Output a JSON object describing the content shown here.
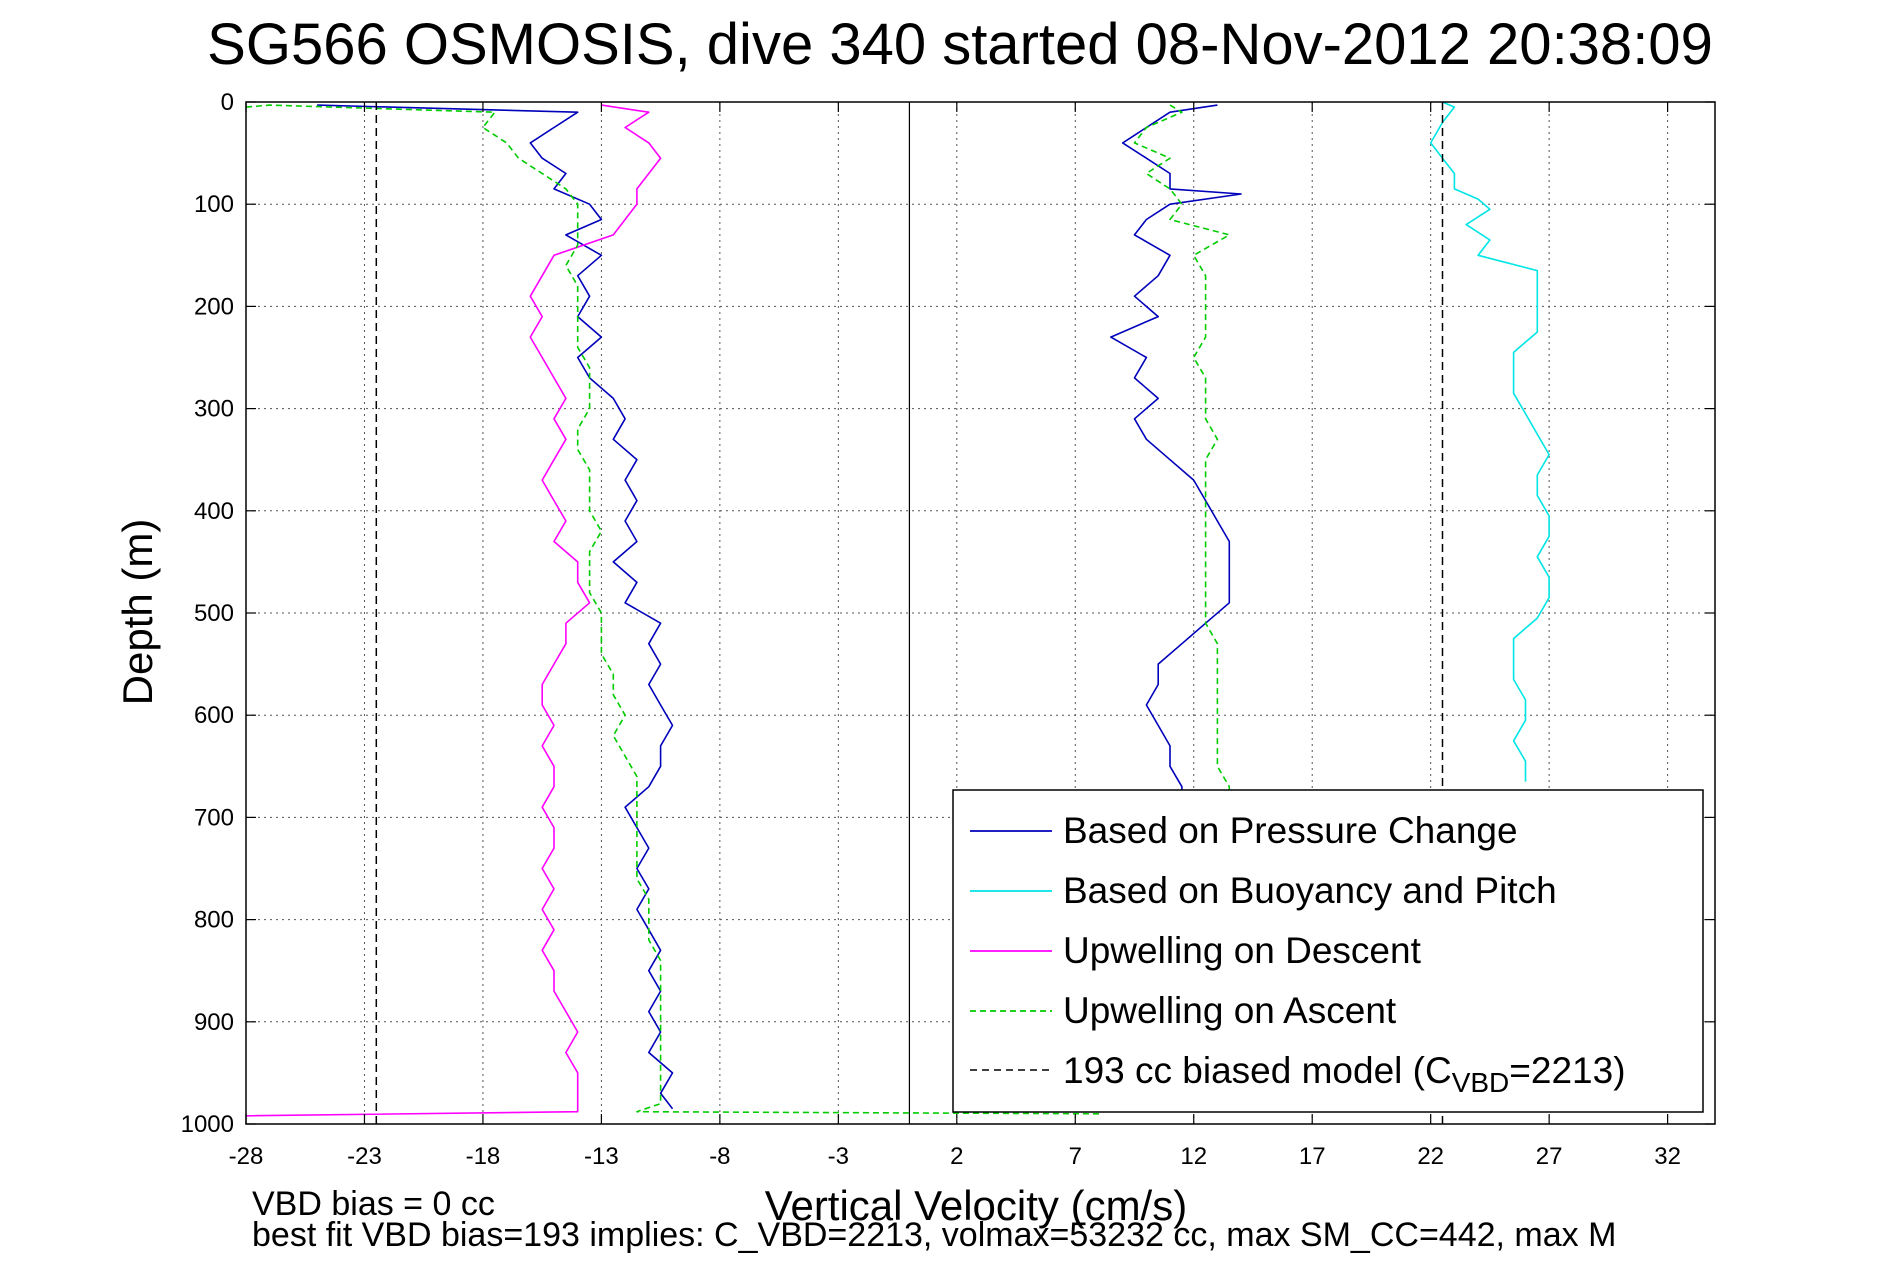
{
  "chart_data": {
    "type": "line",
    "title": "SG566 OSMOSIS, dive 340 started 08-Nov-2012 20:38:09",
    "xlabel": "Vertical Velocity (cm/s)",
    "ylabel": "Depth (m)",
    "xlim": [
      -28,
      34
    ],
    "ylim": [
      1000,
      0
    ],
    "y_reversed": true,
    "xticks": [
      -28,
      -23,
      -18,
      -13,
      -8,
      -3,
      2,
      7,
      12,
      17,
      22,
      27,
      32
    ],
    "yticks": [
      0,
      100,
      200,
      300,
      400,
      500,
      600,
      700,
      800,
      900,
      1000
    ],
    "grid": true,
    "legend_position": "lower-right",
    "footnote_line1": "VBD bias = 0 cc",
    "footnote_line2": "best fit VBD bias=193 implies: C_VBD=2213, volmax=53232 cc, max SM_CC=442, max M",
    "zero_line_x": 0,
    "legend": {
      "items": [
        {
          "label": "Based on Pressure Change",
          "color": "#0000bb",
          "dash": "solid"
        },
        {
          "label": "Based on Buoyancy and Pitch",
          "color": "#00e5e5",
          "dash": "solid"
        },
        {
          "label": "Upwelling on Descent",
          "color": "#ff00ff",
          "dash": "solid"
        },
        {
          "label": "Upwelling on Ascent",
          "color": "#00cc00",
          "dash": "dashed"
        }
      ],
      "model_label_main": "193 cc biased model (C",
      "model_label_sub": "VBD",
      "model_label_tail": "=2213)",
      "model_color": "#000000"
    },
    "series": [
      {
        "name": "Based on Pressure Change",
        "color": "#0000bb",
        "dash": "solid",
        "points": [
          [
            -25,
            3
          ],
          [
            -14,
            10
          ],
          [
            -15,
            25
          ],
          [
            -16,
            40
          ],
          [
            -15.5,
            55
          ],
          [
            -14.5,
            70
          ],
          [
            -15,
            85
          ],
          [
            -13.5,
            100
          ],
          [
            -13,
            115
          ],
          [
            -14.5,
            130
          ],
          [
            -13,
            150
          ],
          [
            -14,
            170
          ],
          [
            -13.5,
            190
          ],
          [
            -14,
            210
          ],
          [
            -13,
            230
          ],
          [
            -14,
            250
          ],
          [
            -13.5,
            270
          ],
          [
            -12.5,
            290
          ],
          [
            -12,
            310
          ],
          [
            -12.5,
            330
          ],
          [
            -11.5,
            350
          ],
          [
            -12,
            370
          ],
          [
            -11.5,
            390
          ],
          [
            -12,
            410
          ],
          [
            -11.5,
            430
          ],
          [
            -12.5,
            450
          ],
          [
            -11.5,
            470
          ],
          [
            -12,
            490
          ],
          [
            -10.5,
            510
          ],
          [
            -11,
            530
          ],
          [
            -10.5,
            550
          ],
          [
            -11,
            570
          ],
          [
            -10.5,
            590
          ],
          [
            -10,
            610
          ],
          [
            -10.5,
            630
          ],
          [
            -10.5,
            650
          ],
          [
            -11,
            670
          ],
          [
            -12,
            690
          ],
          [
            -11.5,
            710
          ],
          [
            -11,
            730
          ],
          [
            -11.5,
            750
          ],
          [
            -11,
            770
          ],
          [
            -11.5,
            790
          ],
          [
            -11,
            810
          ],
          [
            -10.5,
            830
          ],
          [
            -11,
            850
          ],
          [
            -10.5,
            870
          ],
          [
            -11,
            890
          ],
          [
            -10.5,
            910
          ],
          [
            -11,
            930
          ],
          [
            -10,
            950
          ],
          [
            -10.5,
            970
          ],
          [
            -10,
            985
          ],
          [
            13,
            3
          ],
          [
            11,
            10
          ],
          [
            10,
            25
          ],
          [
            9,
            40
          ],
          [
            10,
            55
          ],
          [
            11,
            70
          ],
          [
            11,
            85
          ],
          [
            14,
            90
          ],
          [
            11,
            100
          ],
          [
            10,
            115
          ],
          [
            9.5,
            130
          ],
          [
            11,
            150
          ],
          [
            10.5,
            170
          ],
          [
            9.5,
            190
          ],
          [
            10.5,
            210
          ],
          [
            8.5,
            230
          ],
          [
            10,
            250
          ],
          [
            9.5,
            270
          ],
          [
            10.5,
            290
          ],
          [
            9.5,
            310
          ],
          [
            10,
            330
          ],
          [
            11,
            350
          ],
          [
            12,
            370
          ],
          [
            12.5,
            390
          ],
          [
            13,
            410
          ],
          [
            13.5,
            430
          ],
          [
            13.5,
            450
          ],
          [
            13.5,
            470
          ],
          [
            13.5,
            490
          ],
          [
            12.5,
            510
          ],
          [
            11.5,
            530
          ],
          [
            10.5,
            550
          ],
          [
            10.5,
            570
          ],
          [
            10,
            590
          ],
          [
            10.5,
            610
          ],
          [
            11,
            630
          ],
          [
            11,
            650
          ],
          [
            11.5,
            670
          ],
          [
            11.5,
            690
          ],
          [
            11.5,
            720
          ]
        ]
      },
      {
        "name": "Based on Buoyancy and Pitch",
        "color": "#00e5e5",
        "dash": "solid",
        "points": [
          [
            22.5,
            0
          ],
          [
            23,
            5
          ],
          [
            22.5,
            20
          ],
          [
            22,
            40
          ],
          [
            22.5,
            55
          ],
          [
            23,
            70
          ],
          [
            23,
            85
          ],
          [
            24,
            95
          ],
          [
            24.5,
            105
          ],
          [
            23.5,
            120
          ],
          [
            24.5,
            135
          ],
          [
            24,
            150
          ],
          [
            26.5,
            165
          ],
          [
            26.5,
            185
          ],
          [
            26.5,
            205
          ],
          [
            26.5,
            225
          ],
          [
            25.5,
            245
          ],
          [
            25.5,
            265
          ],
          [
            25.5,
            285
          ],
          [
            26,
            305
          ],
          [
            26.5,
            325
          ],
          [
            27,
            345
          ],
          [
            26.5,
            365
          ],
          [
            26.5,
            385
          ],
          [
            27,
            405
          ],
          [
            27,
            425
          ],
          [
            26.5,
            445
          ],
          [
            27,
            465
          ],
          [
            27,
            485
          ],
          [
            26.5,
            505
          ],
          [
            25.5,
            525
          ],
          [
            25.5,
            545
          ],
          [
            25.5,
            565
          ],
          [
            26,
            585
          ],
          [
            26,
            605
          ],
          [
            25.5,
            625
          ],
          [
            26,
            645
          ],
          [
            26,
            665
          ]
        ]
      },
      {
        "name": "Upwelling on Descent",
        "color": "#ff00ff",
        "dash": "solid",
        "points": [
          [
            -13,
            3
          ],
          [
            -11,
            10
          ],
          [
            -12,
            25
          ],
          [
            -11,
            40
          ],
          [
            -10.5,
            55
          ],
          [
            -11,
            70
          ],
          [
            -11.5,
            85
          ],
          [
            -11.5,
            100
          ],
          [
            -12,
            115
          ],
          [
            -12.5,
            130
          ],
          [
            -15,
            150
          ],
          [
            -15.5,
            170
          ],
          [
            -16,
            190
          ],
          [
            -15.5,
            210
          ],
          [
            -16,
            230
          ],
          [
            -15.5,
            250
          ],
          [
            -15,
            270
          ],
          [
            -14.5,
            290
          ],
          [
            -15,
            310
          ],
          [
            -14.5,
            330
          ],
          [
            -15,
            350
          ],
          [
            -15.5,
            370
          ],
          [
            -15,
            390
          ],
          [
            -14.5,
            410
          ],
          [
            -15,
            430
          ],
          [
            -14,
            450
          ],
          [
            -14,
            470
          ],
          [
            -13.5,
            490
          ],
          [
            -14.5,
            510
          ],
          [
            -14.5,
            530
          ],
          [
            -15,
            550
          ],
          [
            -15.5,
            570
          ],
          [
            -15.5,
            590
          ],
          [
            -15,
            610
          ],
          [
            -15.5,
            630
          ],
          [
            -15,
            650
          ],
          [
            -15,
            670
          ],
          [
            -15.5,
            690
          ],
          [
            -15,
            710
          ],
          [
            -15,
            730
          ],
          [
            -15.5,
            750
          ],
          [
            -15,
            770
          ],
          [
            -15.5,
            790
          ],
          [
            -15,
            810
          ],
          [
            -15.5,
            830
          ],
          [
            -15,
            850
          ],
          [
            -15,
            870
          ],
          [
            -14.5,
            890
          ],
          [
            -14,
            910
          ],
          [
            -14.5,
            930
          ],
          [
            -14,
            950
          ],
          [
            -14,
            970
          ],
          [
            -14,
            988
          ],
          [
            -28,
            992
          ]
        ]
      },
      {
        "name": "Upwelling on Ascent",
        "color": "#00cc00",
        "dash": "dashed",
        "points": [
          [
            -28,
            5
          ],
          [
            -27,
            3
          ],
          [
            -17.5,
            10
          ],
          [
            -18,
            25
          ],
          [
            -17,
            40
          ],
          [
            -16.5,
            55
          ],
          [
            -15.5,
            70
          ],
          [
            -14.5,
            85
          ],
          [
            -14,
            100
          ],
          [
            -14,
            120
          ],
          [
            -14,
            140
          ],
          [
            -14.5,
            160
          ],
          [
            -14,
            180
          ],
          [
            -14,
            200
          ],
          [
            -14,
            220
          ],
          [
            -14,
            240
          ],
          [
            -13.5,
            260
          ],
          [
            -13.5,
            280
          ],
          [
            -13.5,
            300
          ],
          [
            -14,
            320
          ],
          [
            -14,
            340
          ],
          [
            -13.5,
            360
          ],
          [
            -13.5,
            380
          ],
          [
            -13.5,
            400
          ],
          [
            -13,
            420
          ],
          [
            -13.5,
            440
          ],
          [
            -13.5,
            460
          ],
          [
            -13.5,
            480
          ],
          [
            -13,
            500
          ],
          [
            -13,
            520
          ],
          [
            -13,
            540
          ],
          [
            -12.5,
            560
          ],
          [
            -12.5,
            580
          ],
          [
            -12,
            600
          ],
          [
            -12.5,
            620
          ],
          [
            -12,
            640
          ],
          [
            -11.5,
            660
          ],
          [
            -11.5,
            680
          ],
          [
            -11.5,
            700
          ],
          [
            -11.5,
            720
          ],
          [
            -11.5,
            740
          ],
          [
            -11.5,
            760
          ],
          [
            -11,
            780
          ],
          [
            -11,
            800
          ],
          [
            -11,
            820
          ],
          [
            -10.5,
            840
          ],
          [
            -10.5,
            860
          ],
          [
            -10.5,
            880
          ],
          [
            -10.5,
            900
          ],
          [
            -10.5,
            920
          ],
          [
            -10.5,
            940
          ],
          [
            -10.5,
            960
          ],
          [
            -10.5,
            980
          ],
          [
            -11.5,
            988
          ],
          [
            8,
            990
          ],
          [
            11,
            3
          ],
          [
            11.5,
            10
          ],
          [
            10,
            25
          ],
          [
            9.5,
            40
          ],
          [
            11,
            55
          ],
          [
            10,
            70
          ],
          [
            11,
            85
          ],
          [
            11.5,
            100
          ],
          [
            11,
            115
          ],
          [
            13.5,
            130
          ],
          [
            12,
            150
          ],
          [
            12.5,
            170
          ],
          [
            12.5,
            190
          ],
          [
            12.5,
            210
          ],
          [
            12.5,
            230
          ],
          [
            12,
            250
          ],
          [
            12.5,
            270
          ],
          [
            12.5,
            290
          ],
          [
            12.5,
            310
          ],
          [
            13,
            330
          ],
          [
            12.5,
            350
          ],
          [
            12.5,
            370
          ],
          [
            12.5,
            390
          ],
          [
            12.5,
            410
          ],
          [
            12.5,
            430
          ],
          [
            12.5,
            450
          ],
          [
            12.5,
            470
          ],
          [
            12.5,
            490
          ],
          [
            12.5,
            510
          ],
          [
            13,
            530
          ],
          [
            13,
            550
          ],
          [
            13,
            570
          ],
          [
            13,
            590
          ],
          [
            13,
            610
          ],
          [
            13,
            630
          ],
          [
            13,
            650
          ],
          [
            13.5,
            670
          ],
          [
            13.5,
            690
          ]
        ]
      },
      {
        "name": "193 cc biased model (C_VBD=2213)",
        "color": "#000000",
        "dash": "dashed",
        "points": [
          [
            -22.5,
            0
          ],
          [
            -22.5,
            1000
          ]
        ]
      },
      {
        "name": "193 cc biased model (C_VBD=2213)",
        "color": "#000000",
        "dash": "dashed",
        "points": [
          [
            22.5,
            0
          ],
          [
            22.5,
            1000
          ]
        ]
      }
    ]
  }
}
